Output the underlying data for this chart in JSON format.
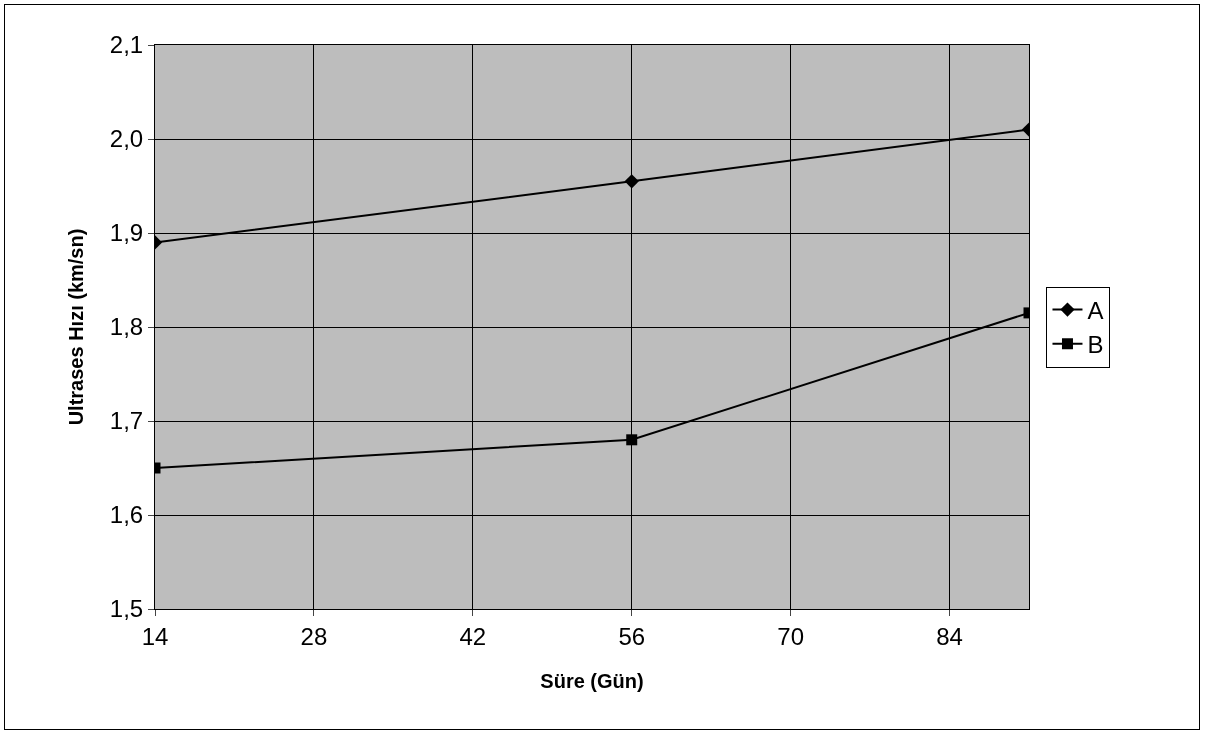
{
  "chart_data": {
    "type": "line",
    "xlabel": "Süre (Gün)",
    "ylabel": "Ultrases Hızı (km/sn)",
    "x": [
      14,
      56,
      91
    ],
    "series": [
      {
        "name": "A",
        "color": "#000000",
        "marker": "diamond",
        "values": [
          1.89,
          1.955,
          2.01
        ]
      },
      {
        "name": "B",
        "color": "#000000",
        "marker": "square",
        "values": [
          1.65,
          1.68,
          1.815
        ]
      }
    ],
    "xlim": [
      14,
      91
    ],
    "xticks": [
      14,
      28,
      42,
      56,
      70,
      84
    ],
    "ylim": [
      1.5,
      2.1
    ],
    "yticks": [
      {
        "value": 1.5,
        "label": "1,5"
      },
      {
        "value": 1.6,
        "label": "1,6"
      },
      {
        "value": 1.7,
        "label": "1,7"
      },
      {
        "value": 1.8,
        "label": "1,8"
      },
      {
        "value": 1.9,
        "label": "1,9"
      },
      {
        "value": 2.0,
        "label": "2,0"
      },
      {
        "value": 2.1,
        "label": "2,1"
      }
    ],
    "grid": true,
    "legend": "right",
    "line_style": "solid"
  }
}
